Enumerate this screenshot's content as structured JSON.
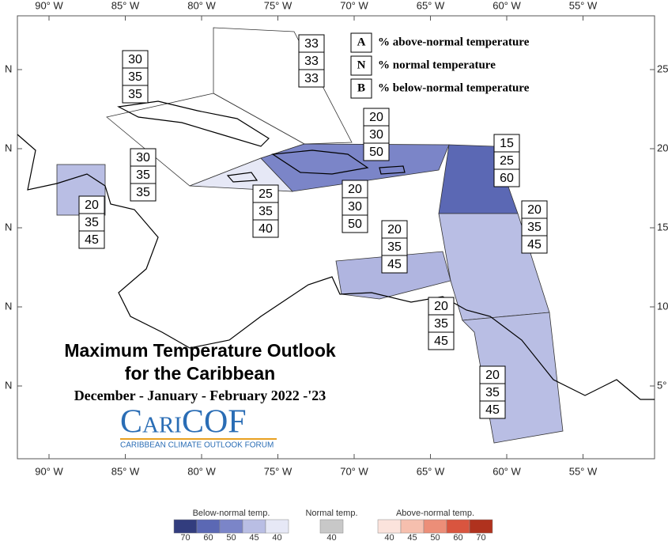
{
  "axes": {
    "top_labels": [
      "90° W",
      "85° W",
      "80° W",
      "75° W",
      "70° W",
      "65° W",
      "60° W",
      "55° W"
    ],
    "bottom_labels": [
      "90° W",
      "85° W",
      "80° W",
      "75° W",
      "70° W",
      "65° W",
      "60° W",
      "55° W"
    ],
    "left_labels": [
      "N",
      "N",
      "N",
      "N",
      "N"
    ],
    "right_labels": [
      "25",
      "20",
      "15",
      "10",
      "5°"
    ]
  },
  "key": [
    {
      "letter": "A",
      "text": "% above-normal temperature"
    },
    {
      "letter": "N",
      "text": "% normal temperature"
    },
    {
      "letter": "B",
      "text": "% below-normal temperature"
    }
  ],
  "outlook_boxes": [
    [
      33,
      33,
      33
    ],
    [
      30,
      35,
      35
    ],
    [
      30,
      35,
      35
    ],
    [
      25,
      35,
      40
    ],
    [
      20,
      30,
      50
    ],
    [
      20,
      30,
      50
    ],
    [
      15,
      25,
      60
    ],
    [
      20,
      35,
      45
    ],
    [
      20,
      35,
      45
    ],
    [
      20,
      35,
      45
    ],
    [
      20,
      35,
      45
    ],
    [
      20,
      35,
      45
    ]
  ],
  "title": [
    "Maximum Temperature Outlook",
    "for the Caribbean"
  ],
  "subtitle": "December - January - February 2022 -'23",
  "logo": {
    "name": "CariCOF",
    "tagline": "CARIBBEAN CLIMATE OUTLOOK FORUM"
  },
  "colorbar": [
    {
      "label": "Below-normal temp.",
      "ticks": [
        70,
        60,
        50,
        45,
        40
      ],
      "colors": [
        "#323d7e",
        "#5b68b4",
        "#7b85c8",
        "#b9bee4",
        "#e6e8f6"
      ]
    },
    {
      "label": "Normal temp.",
      "ticks": [
        40
      ],
      "colors": [
        "#c8c8c8"
      ]
    },
    {
      "label": "Above-normal temp.",
      "ticks": [
        40,
        45,
        50,
        60,
        70
      ],
      "colors": [
        "#fbe3dc",
        "#f6bfae",
        "#ec8e78",
        "#d9553f",
        "#b0321e"
      ]
    }
  ]
}
